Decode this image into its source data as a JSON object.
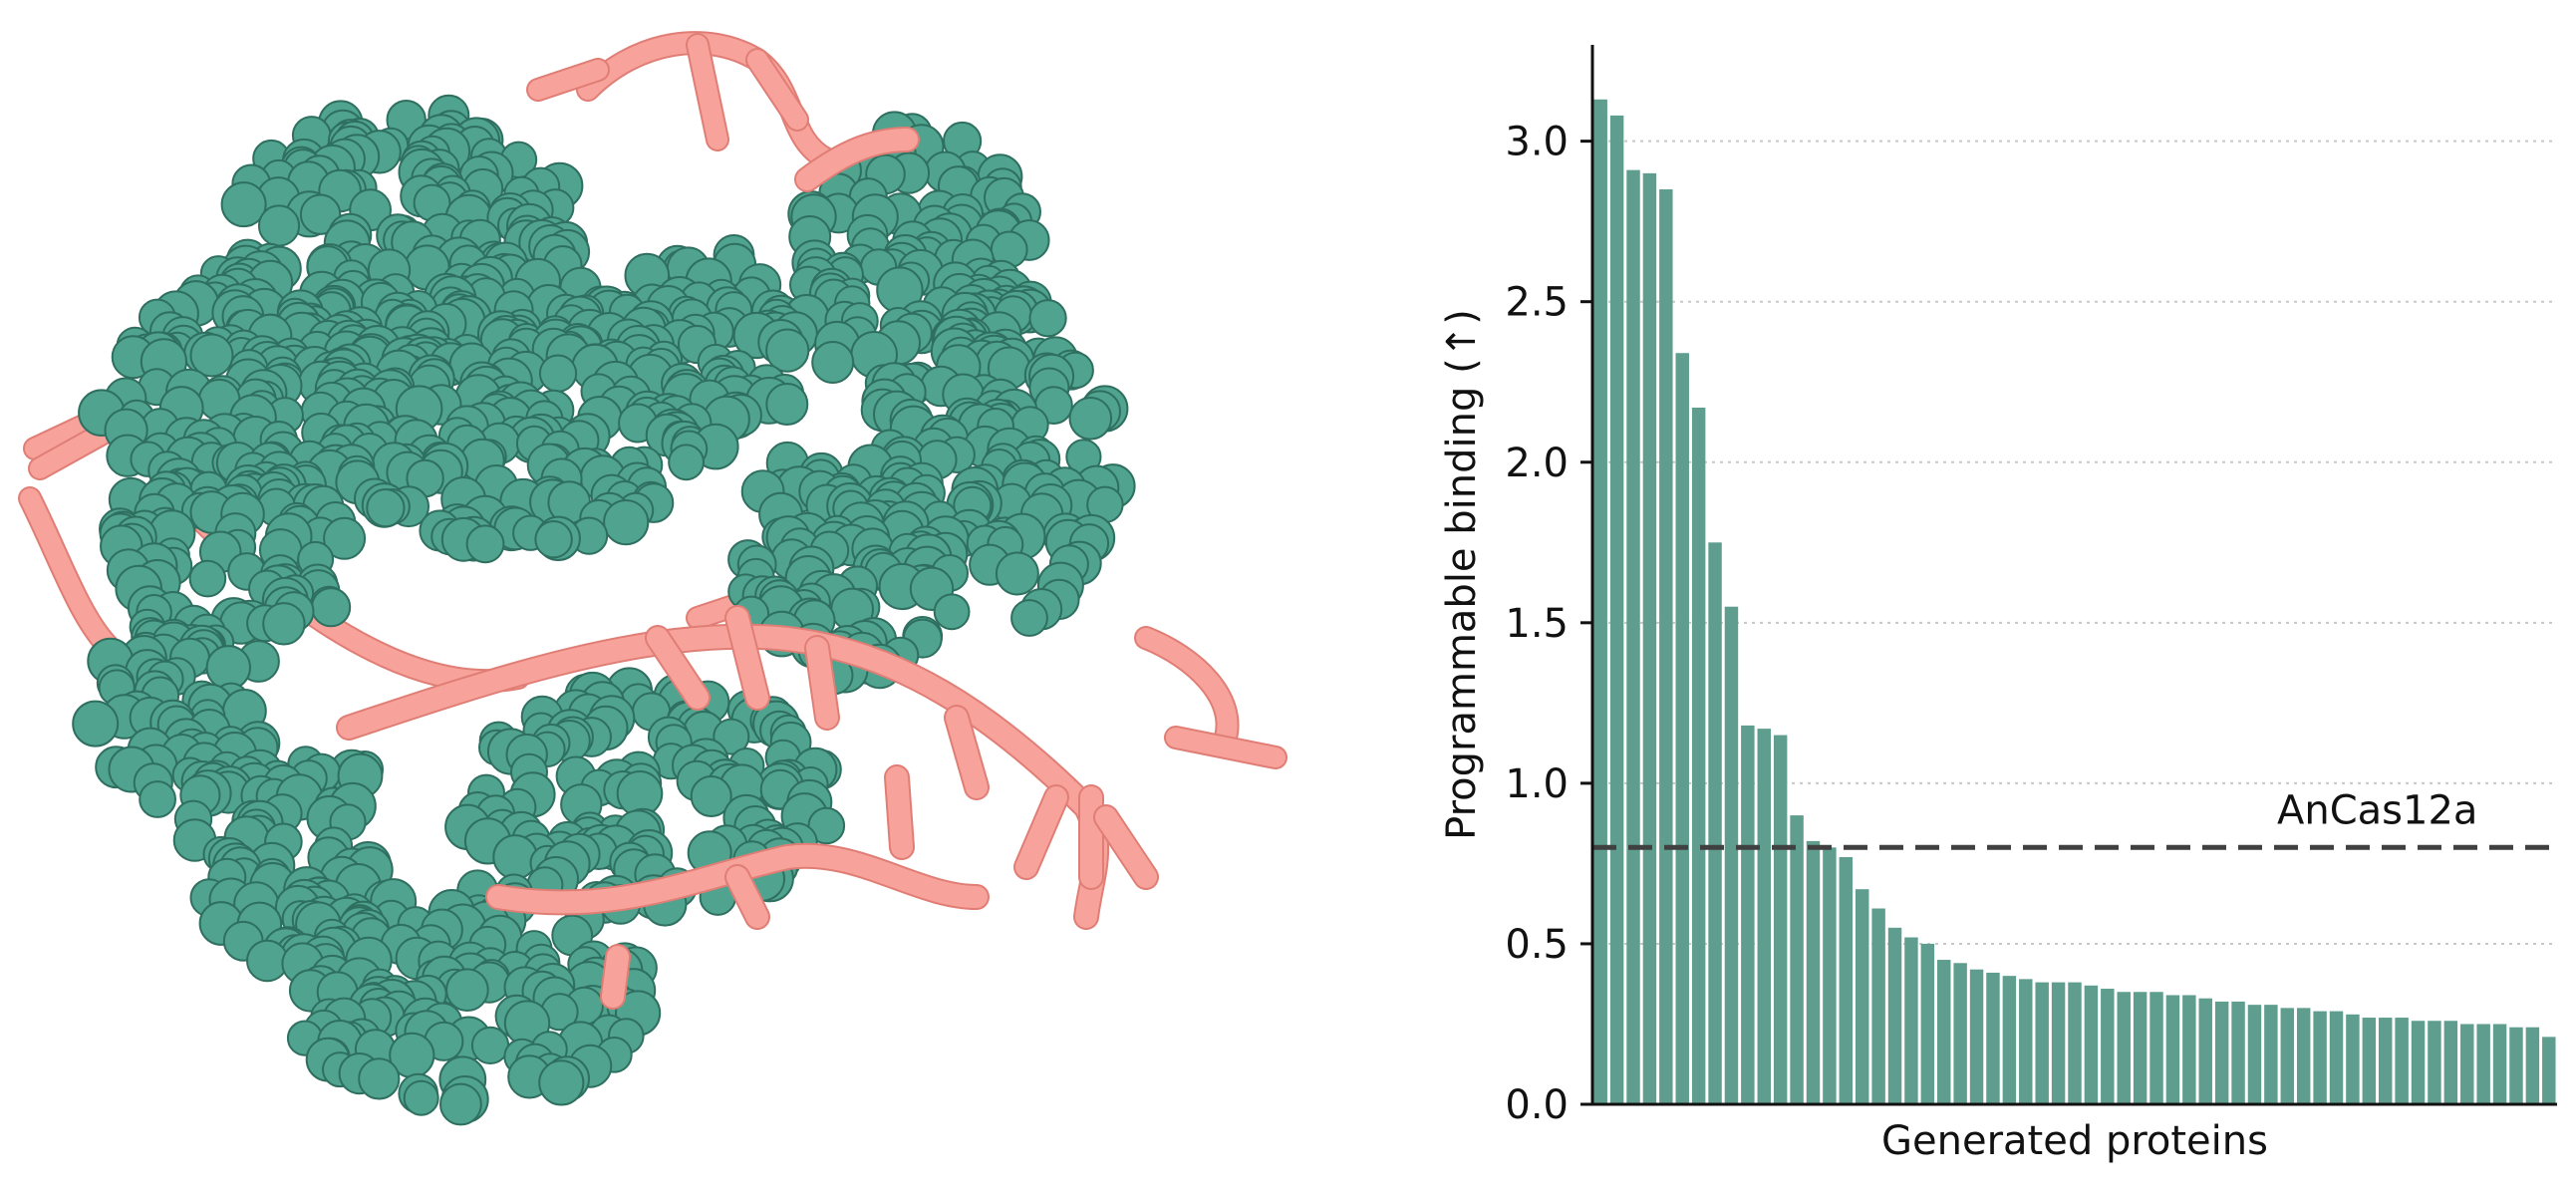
{
  "figure": {
    "structure": {
      "protein_color": "#4fa38f",
      "protein_edge_color": "#2f6f60",
      "dna_color": "#f7a39b",
      "dna_edge_color": "#e07e76"
    }
  },
  "chart_data": {
    "type": "bar",
    "xlabel": "Generated proteins",
    "ylabel": "Programmable binding (↑)",
    "ylim": [
      0,
      3.3
    ],
    "yticks": [
      0.0,
      0.5,
      1.0,
      1.5,
      2.0,
      2.5,
      3.0
    ],
    "ytick_labels": [
      "0.0",
      "0.5",
      "1.0",
      "1.5",
      "2.0",
      "2.5",
      "3.0"
    ],
    "grid": "horizontal dotted",
    "bar_color": "#5f9e8f",
    "values": [
      3.13,
      3.08,
      2.91,
      2.9,
      2.85,
      2.34,
      2.17,
      1.75,
      1.55,
      1.18,
      1.17,
      1.15,
      0.9,
      0.82,
      0.8,
      0.77,
      0.67,
      0.61,
      0.55,
      0.52,
      0.5,
      0.45,
      0.44,
      0.42,
      0.41,
      0.4,
      0.39,
      0.38,
      0.38,
      0.38,
      0.37,
      0.36,
      0.35,
      0.35,
      0.35,
      0.34,
      0.34,
      0.33,
      0.32,
      0.32,
      0.31,
      0.31,
      0.3,
      0.3,
      0.29,
      0.29,
      0.28,
      0.27,
      0.27,
      0.27,
      0.26,
      0.26,
      0.26,
      0.25,
      0.25,
      0.25,
      0.24,
      0.24,
      0.21
    ],
    "reference": {
      "label": "AnCas12a",
      "value": 0.8,
      "color": "#404040",
      "style": "dashed"
    }
  }
}
